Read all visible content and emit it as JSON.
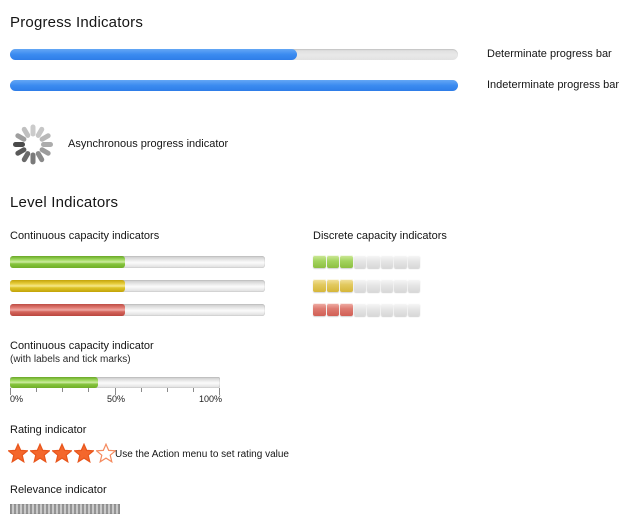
{
  "progress_section": {
    "title": "Progress Indicators",
    "determinate": {
      "label": "Determinate progress bar",
      "value_percent": 64,
      "fill_color": "#3b8bf0",
      "track_color": "#e3e3e3"
    },
    "indeterminate": {
      "label": "Indeterminate progress bar",
      "value_percent": 100,
      "fill_color": "#3b8bf0"
    },
    "async": {
      "label": "Asynchronous progress indicator",
      "spoke_colors": [
        "#acacac",
        "#9c9c9c",
        "#8a8a8a",
        "#7a7a7a",
        "#696969",
        "#595959",
        "#4a4a4a",
        "#9e9e9e",
        "#c0c0c0",
        "#cbcbcb",
        "#c6c6c6",
        "#b8b8b8"
      ]
    }
  },
  "level_section": {
    "title": "Level Indicators",
    "continuous": {
      "label": "Continuous capacity indicators",
      "bars": [
        {
          "color": "green",
          "hex": "#8cc63f",
          "value_percent": 45
        },
        {
          "color": "yellow",
          "hex": "#e3c52a",
          "value_percent": 45
        },
        {
          "color": "red",
          "hex": "#d8655c",
          "value_percent": 45
        }
      ]
    },
    "discrete": {
      "label": "Discrete capacity indicators",
      "segments_total": 8,
      "bars": [
        {
          "color": "green",
          "hex": "#a3d45f",
          "filled": 3
        },
        {
          "color": "yellow",
          "hex": "#e2c95e",
          "filled": 3
        },
        {
          "color": "red",
          "hex": "#dd7a70",
          "filled": 3
        }
      ]
    },
    "labeled": {
      "title": "Continuous capacity indicator",
      "subtitle": "(with labels and tick marks)",
      "value_percent": 42,
      "color": "green",
      "tick_count": 9,
      "major_tick_indexes": [
        0,
        4,
        8
      ],
      "tick_labels": [
        "0%",
        "50%",
        "100%"
      ]
    },
    "rating": {
      "label": "Rating indicator",
      "stars_total": 5,
      "stars_filled": 4,
      "star_fill_color": "#f4672c",
      "star_stroke_color": "#e8561c",
      "empty_star_stroke_color": "#f58a5e",
      "caption": "Use the Action menu to set rating value"
    },
    "relevance": {
      "label": "Relevance indicator",
      "stripe_dark": "#949494",
      "stripe_light": "#c9c9c9"
    }
  }
}
